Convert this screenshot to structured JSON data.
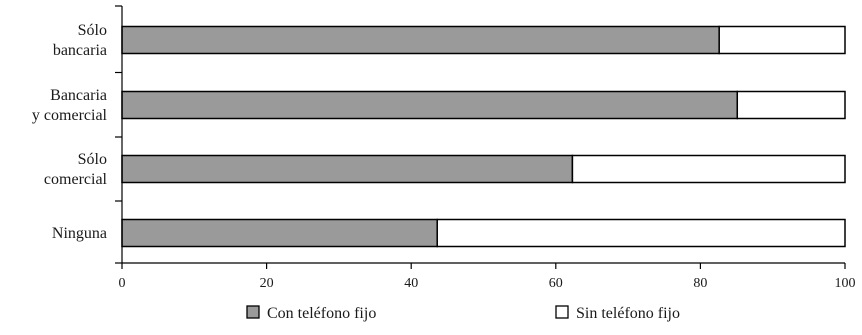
{
  "chart_data": {
    "type": "bar",
    "orientation": "horizontal",
    "stacked": true,
    "categories": [
      [
        "Sólo",
        "bancaria"
      ],
      [
        "Bancaria",
        "y comercial"
      ],
      [
        "Sólo",
        "comercial"
      ],
      [
        "Ninguna"
      ]
    ],
    "series": [
      {
        "name": "Con teléfono fijo",
        "values": [
          82.6,
          85.1,
          62.3,
          43.6
        ],
        "color": "#9a9a9a"
      },
      {
        "name": "Sin teléfono fijo",
        "values": [
          17.4,
          14.9,
          37.7,
          56.4
        ],
        "color": "#ffffff"
      }
    ],
    "xlim": [
      0,
      100
    ],
    "xticks": [
      0,
      20,
      40,
      60,
      80,
      100
    ],
    "title": "",
    "xlabel": "",
    "ylabel": "",
    "grid": false,
    "legend_position": "bottom-center"
  }
}
